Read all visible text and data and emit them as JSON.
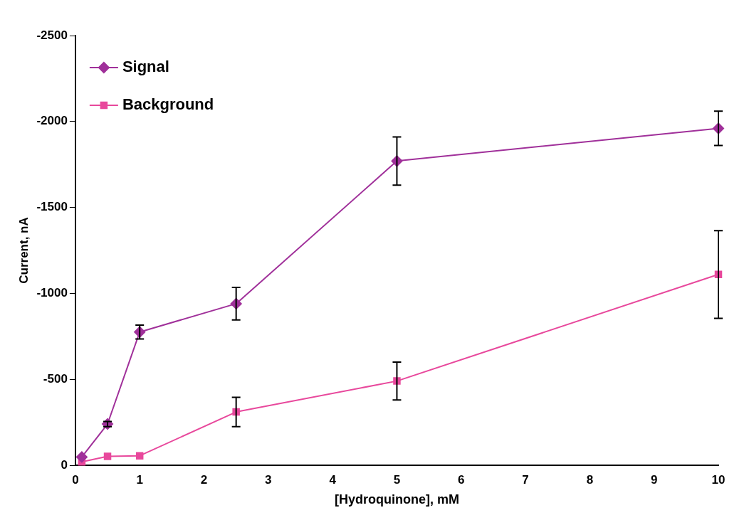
{
  "chart_data": {
    "type": "line",
    "xlabel": "[Hydroquinone], mM",
    "ylabel": "Current, nA",
    "xlim": [
      0,
      10
    ],
    "xticks": [
      0,
      1,
      2,
      3,
      4,
      5,
      6,
      7,
      8,
      9,
      10
    ],
    "ylim": [
      0,
      -2500
    ],
    "yticks": [
      0,
      -500,
      -1000,
      -1500,
      -2000,
      -2500
    ],
    "grid": false,
    "legend": "top left",
    "line_style": "solid",
    "series": [
      {
        "name": "Signal",
        "color": "#a0309a",
        "marker": "diamond",
        "x": [
          0.1,
          0.5,
          1,
          2.5,
          5,
          10
        ],
        "values": [
          -48,
          -240,
          -775,
          -940,
          -1770,
          -1960
        ],
        "errors": [
          null,
          15,
          40,
          95,
          140,
          100
        ]
      },
      {
        "name": "Background",
        "color": "#e8489c",
        "marker": "square",
        "x": [
          0.1,
          0.5,
          1,
          2.5,
          5,
          10
        ],
        "values": [
          -20,
          -52,
          -55,
          -310,
          -490,
          -1110
        ],
        "errors": [
          null,
          null,
          null,
          85,
          110,
          255
        ]
      }
    ]
  }
}
